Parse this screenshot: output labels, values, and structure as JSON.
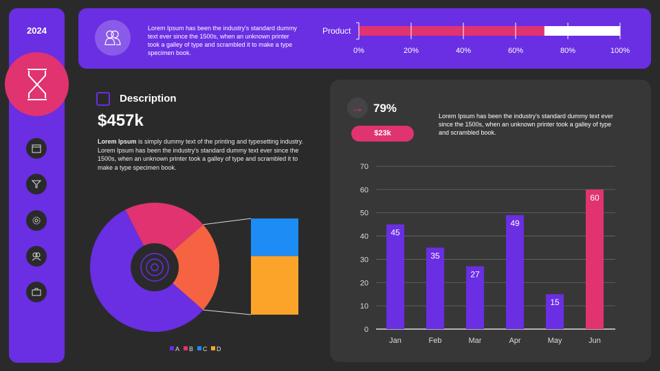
{
  "sidebar": {
    "year": "2024",
    "icons": [
      "hourglass-icon",
      "calendar-icon",
      "funnel-icon",
      "gear-icon",
      "users-icon",
      "briefcase-icon"
    ]
  },
  "top": {
    "text": "Lorem Ipsum has been the industry's standard dummy text ever since the 1500s, when an unknown printer took a galley of type and scrambled it to make a type specimen book.",
    "icon": "users-icon"
  },
  "description": {
    "title": "Description",
    "value": "$457k",
    "text_bold": "Lorem Ipsum",
    "text": " is  simply dummy text of the printing and typesetting industry. Lorem Ipsum has been the industry's standard dummy text ever since the 1500s, when an unknown printer took a galley of type and scrambled it to make a type specimen book."
  },
  "stats": {
    "percent": "79%",
    "pill": "$23k",
    "text": "Lorem Ipsum has been the industry's standard dummy text ever since the 1500s, when an unknown printer took a galley  of type and scrambled book."
  },
  "colors": {
    "purple": "#6a2ee3",
    "pink": "#e03370",
    "orange": "#f56342",
    "blue": "#1e8cf5",
    "yellow": "#fca42a",
    "bg": "#2b2a2b"
  },
  "chart_data": [
    {
      "type": "bar",
      "orientation": "horizontal",
      "categories": [
        "Product"
      ],
      "values": [
        71
      ],
      "xlim": [
        0,
        100
      ],
      "ticks": [
        "0%",
        "20%",
        "40%",
        "60%",
        "80%",
        "100%"
      ]
    },
    {
      "type": "pie",
      "subtype": "bar-of-pie",
      "categories": [
        "A",
        "B",
        "C",
        "D"
      ],
      "values": [
        56,
        21,
        9,
        14
      ],
      "legend": "bottom"
    },
    {
      "type": "bar",
      "categories": [
        "Jan",
        "Feb",
        "Mar",
        "Apr",
        "May",
        "Jun"
      ],
      "values": [
        45,
        35,
        27,
        49,
        15,
        60
      ],
      "ylim": [
        0,
        70
      ],
      "yticks": [
        "0",
        "10",
        "20",
        "30",
        "40",
        "50",
        "60",
        "70"
      ],
      "grid": true,
      "highlight": "Jun"
    }
  ]
}
